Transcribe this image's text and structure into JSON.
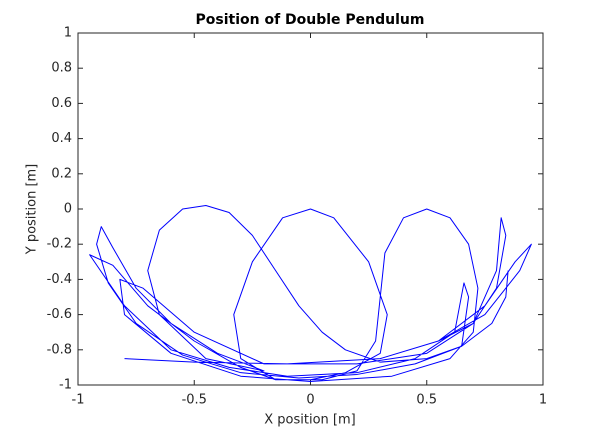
{
  "chart_data": {
    "type": "line",
    "title": "Position of Double Pendulum",
    "xlabel": "X position [m]",
    "ylabel": "Y position [m]",
    "xlim": [
      -1,
      1
    ],
    "ylim": [
      -1,
      1
    ],
    "xticks": [
      -1,
      -0.5,
      0,
      0.5,
      1
    ],
    "yticks": [
      -1,
      -0.8,
      -0.6,
      -0.4,
      -0.2,
      0,
      0.2,
      0.4,
      0.6,
      0.8,
      1
    ],
    "series": [
      {
        "color": "#0000ff",
        "x": [
          0.85,
          0.84,
          0.78,
          0.65,
          0.45,
          0.2,
          -0.05,
          -0.3,
          -0.55,
          -0.75,
          -0.87,
          -0.92,
          -0.9,
          -0.85,
          -0.75,
          -0.6,
          -0.4,
          -0.2,
          -0.45,
          -0.65,
          -0.7,
          -0.65,
          -0.55,
          -0.45,
          -0.35,
          -0.25,
          -0.15,
          -0.05,
          0.05,
          0.15,
          0.3,
          0.5,
          0.65,
          0.68,
          0.66,
          0.62,
          0.45,
          0.2,
          -0.1,
          -0.35,
          -0.6,
          -0.8,
          -0.95,
          -0.85,
          -0.7,
          -0.5,
          -0.3,
          -0.15,
          0,
          0.15,
          0.3,
          0.33,
          0.25,
          0.1,
          0,
          -0.12,
          -0.25,
          -0.33,
          -0.3,
          -0.15,
          0.05,
          0.2,
          0.28,
          0.3,
          0.32,
          0.4,
          0.5,
          0.6,
          0.68,
          0.72,
          0.7,
          0.6,
          0.35,
          0,
          -0.3,
          -0.6,
          -0.8,
          -0.82,
          -0.72,
          -0.5,
          -0.2,
          0.2,
          0.5,
          0.7,
          0.8,
          0.82,
          0.84,
          0.8,
          0.7,
          0.55,
          0.75,
          0.88,
          0.95,
          0.9,
          0.75,
          0.55,
          0.3,
          -0.1,
          -0.5,
          -0.8
        ],
        "y": [
          -0.35,
          -0.5,
          -0.65,
          -0.78,
          -0.88,
          -0.94,
          -0.96,
          -0.93,
          -0.83,
          -0.65,
          -0.42,
          -0.2,
          -0.1,
          -0.22,
          -0.45,
          -0.65,
          -0.82,
          -0.92,
          -0.85,
          -0.6,
          -0.35,
          -0.12,
          0,
          0.02,
          -0.02,
          -0.15,
          -0.35,
          -0.55,
          -0.7,
          -0.8,
          -0.87,
          -0.85,
          -0.78,
          -0.5,
          -0.42,
          -0.7,
          -0.85,
          -0.93,
          -0.95,
          -0.9,
          -0.8,
          -0.55,
          -0.26,
          -0.32,
          -0.55,
          -0.75,
          -0.9,
          -0.97,
          -0.97,
          -0.93,
          -0.82,
          -0.6,
          -0.3,
          -0.05,
          0,
          -0.05,
          -0.3,
          -0.6,
          -0.85,
          -0.97,
          -0.97,
          -0.92,
          -0.75,
          -0.5,
          -0.25,
          -0.05,
          0,
          -0.05,
          -0.2,
          -0.45,
          -0.7,
          -0.85,
          -0.95,
          -0.98,
          -0.95,
          -0.82,
          -0.6,
          -0.4,
          -0.45,
          -0.7,
          -0.88,
          -0.88,
          -0.82,
          -0.65,
          -0.35,
          -0.05,
          -0.15,
          -0.45,
          -0.65,
          -0.75,
          -0.55,
          -0.3,
          -0.2,
          -0.35,
          -0.6,
          -0.75,
          -0.85,
          -0.88,
          -0.87,
          -0.85
        ]
      }
    ]
  }
}
